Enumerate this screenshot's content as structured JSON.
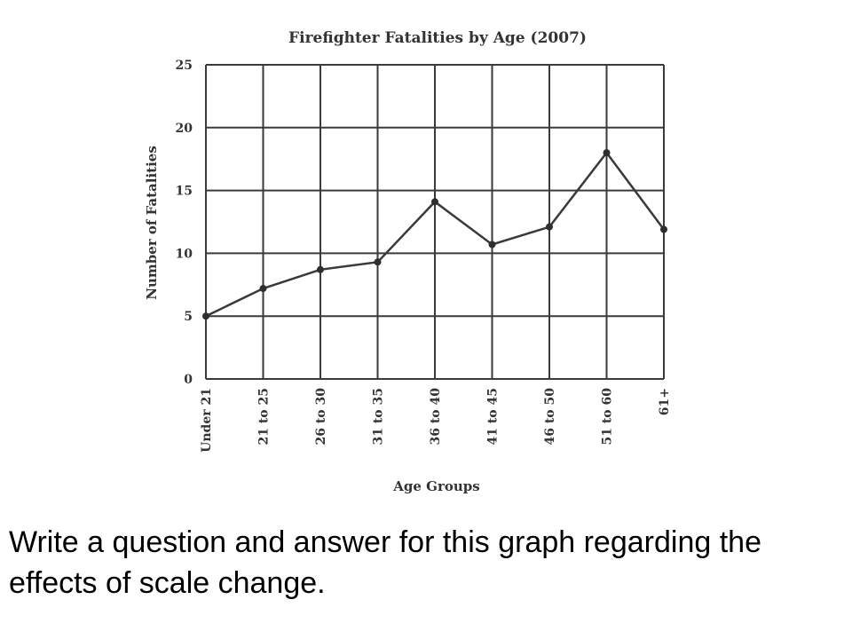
{
  "chart_data": {
    "type": "line",
    "title": "Firefighter Fatalities by Age (2007)",
    "xlabel": "Age Groups",
    "ylabel": "Number of Fatalities",
    "categories": [
      "Under 21",
      "21 to 25",
      "26 to 30",
      "31 to 35",
      "36 to 40",
      "41 to 45",
      "46 to 50",
      "51 to 60",
      "61+"
    ],
    "values": [
      5,
      7.2,
      8.7,
      9.3,
      14.1,
      10.7,
      12.1,
      18,
      11.9
    ],
    "yticks": [
      "0",
      "5",
      "10",
      "15",
      "20",
      "25"
    ],
    "ylim": [
      0,
      25
    ],
    "grid": true,
    "line_color": "#3a3a3a"
  },
  "prompt": {
    "text": "Write a question and answer for this graph regarding the effects of scale change."
  }
}
